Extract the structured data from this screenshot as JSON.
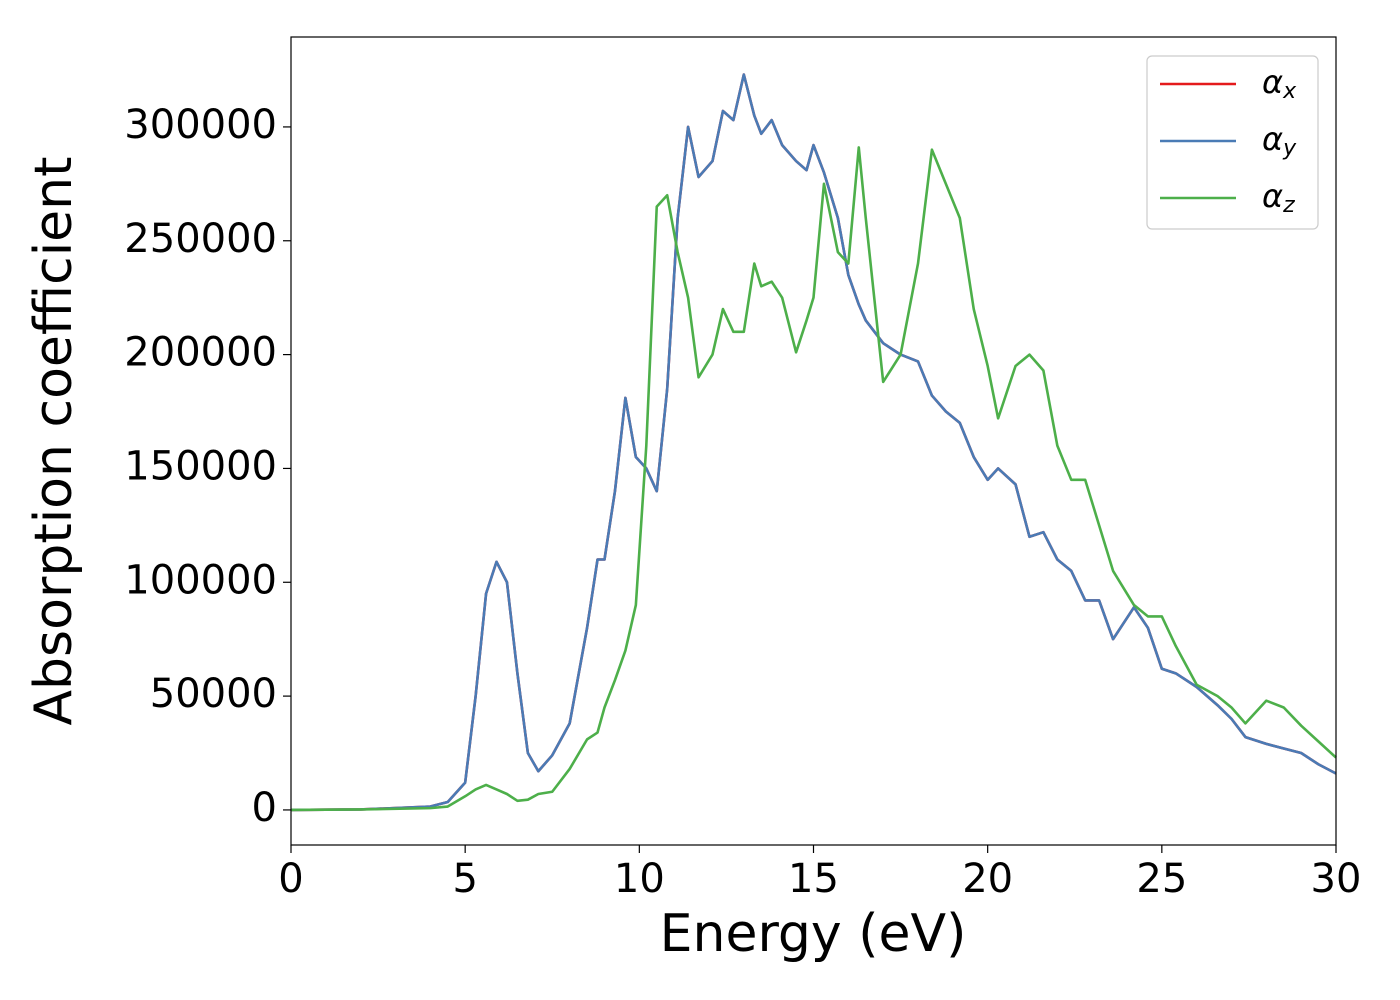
{
  "chart_data": {
    "type": "line",
    "xlabel": "Energy (eV)",
    "ylabel": "Absorption coefficient",
    "x": [
      0,
      2,
      4,
      4.5,
      5,
      5.3,
      5.6,
      5.9,
      6.2,
      6.5,
      6.8,
      7.1,
      7.5,
      8,
      8.5,
      8.8,
      9.0,
      9.3,
      9.6,
      9.9,
      10.2,
      10.5,
      10.8,
      11.1,
      11.4,
      11.7,
      12.1,
      12.4,
      12.7,
      13.0,
      13.3,
      13.5,
      13.8,
      14.1,
      14.5,
      14.8,
      15.0,
      15.3,
      15.7,
      16.0,
      16.3,
      16.5,
      17.0,
      17.5,
      18.0,
      18.4,
      18.8,
      19.2,
      19.6,
      20.0,
      20.3,
      20.8,
      21.2,
      21.6,
      22.0,
      22.4,
      22.8,
      23.2,
      23.6,
      24.2,
      24.6,
      25.0,
      25.4,
      26.0,
      26.6,
      27.0,
      27.4,
      28.0,
      28.5,
      29.0,
      29.5,
      30
    ],
    "series": [
      {
        "name": "αx",
        "color": "#e41a1c",
        "values": [
          0,
          200,
          1500,
          3500,
          12000,
          50000,
          95000,
          109000,
          100000,
          60000,
          25000,
          17000,
          24000,
          38000,
          80000,
          110000,
          110000,
          140000,
          181000,
          155000,
          150000,
          140000,
          185000,
          260000,
          300000,
          278000,
          285000,
          307000,
          303000,
          323000,
          305000,
          297000,
          303000,
          292000,
          285000,
          281000,
          292000,
          280000,
          260000,
          235000,
          222000,
          215000,
          205000,
          200000,
          197000,
          182000,
          175000,
          170000,
          155000,
          145000,
          150000,
          143000,
          120000,
          122000,
          110000,
          105000,
          92000,
          92000,
          75000,
          89000,
          80000,
          62000,
          60000,
          54000,
          46000,
          40000,
          32000,
          29000,
          27000,
          25000,
          20000,
          16000
        ]
      },
      {
        "name": "αy",
        "color": "#4a7bb5",
        "values": [
          0,
          200,
          1500,
          3500,
          12000,
          50000,
          95000,
          109000,
          100000,
          60000,
          25000,
          17000,
          24000,
          38000,
          80000,
          110000,
          110000,
          140000,
          181000,
          155000,
          150000,
          140000,
          185000,
          260000,
          300000,
          278000,
          285000,
          307000,
          303000,
          323000,
          305000,
          297000,
          303000,
          292000,
          285000,
          281000,
          292000,
          280000,
          260000,
          235000,
          222000,
          215000,
          205000,
          200000,
          197000,
          182000,
          175000,
          170000,
          155000,
          145000,
          150000,
          143000,
          120000,
          122000,
          110000,
          105000,
          92000,
          92000,
          75000,
          89000,
          80000,
          62000,
          60000,
          54000,
          46000,
          40000,
          32000,
          29000,
          27000,
          25000,
          20000,
          16000
        ]
      },
      {
        "name": "αz",
        "color": "#4daf4a",
        "values": [
          0,
          200,
          800,
          1500,
          6000,
          9000,
          11000,
          9000,
          7000,
          4000,
          4500,
          7000,
          8000,
          18000,
          31000,
          34000,
          45000,
          57000,
          70000,
          90000,
          160000,
          265000,
          270000,
          245000,
          225000,
          190000,
          200000,
          220000,
          210000,
          210000,
          240000,
          230000,
          232000,
          225000,
          201000,
          215000,
          225000,
          275000,
          245000,
          240000,
          291000,
          260000,
          188000,
          200000,
          240000,
          290000,
          275000,
          260000,
          220000,
          195000,
          172000,
          195000,
          200000,
          193000,
          160000,
          145000,
          145000,
          125000,
          105000,
          90000,
          85000,
          85000,
          72000,
          55000,
          50000,
          45000,
          38000,
          48000,
          45000,
          37000,
          30000,
          23000
        ]
      }
    ],
    "xlim": [
      0,
      30
    ],
    "xticks": [
      0,
      5,
      10,
      15,
      20,
      25,
      30
    ],
    "ylim": [
      -15400,
      339500
    ],
    "yticks": [
      0,
      50000,
      100000,
      150000,
      200000,
      250000,
      300000
    ],
    "legend": "upper right",
    "grid": false
  }
}
